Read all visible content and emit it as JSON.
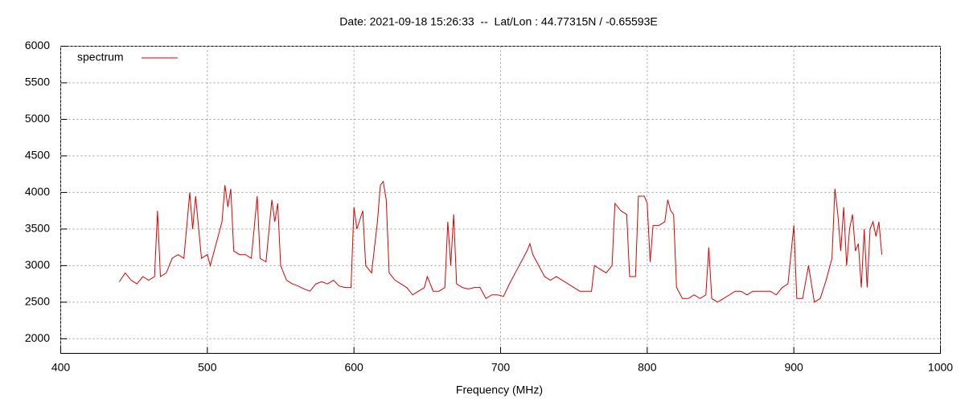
{
  "chart_data": {
    "type": "line",
    "title": "Date: 2021-09-18 15:26:33  --  Lat/Lon : 44.77315N / -0.65593E",
    "x_label": "Frequency (MHz)",
    "xlim": [
      400,
      1000
    ],
    "xticks": [
      400,
      500,
      600,
      700,
      800,
      900,
      1000
    ],
    "ylim": [
      1800,
      6000
    ],
    "yticks": [
      2000,
      2500,
      3000,
      3500,
      4000,
      4500,
      5000,
      5500,
      6000
    ],
    "grid": true,
    "legend": "top-left",
    "x": [
      440,
      444,
      448,
      452,
      456,
      460,
      464,
      466,
      468,
      472,
      476,
      480,
      484,
      488,
      490,
      492,
      496,
      500,
      502,
      506,
      510,
      512,
      514,
      516,
      518,
      522,
      526,
      530,
      534,
      536,
      540,
      544,
      546,
      548,
      550,
      554,
      558,
      562,
      566,
      570,
      574,
      578,
      582,
      586,
      590,
      594,
      598,
      600,
      602,
      606,
      608,
      612,
      616,
      618,
      620,
      622,
      624,
      628,
      632,
      636,
      640,
      644,
      648,
      650,
      654,
      658,
      662,
      664,
      666,
      668,
      670,
      674,
      678,
      682,
      686,
      690,
      694,
      698,
      702,
      706,
      710,
      714,
      718,
      720,
      722,
      726,
      730,
      734,
      738,
      742,
      746,
      750,
      754,
      758,
      762,
      764,
      768,
      772,
      776,
      778,
      782,
      786,
      788,
      792,
      794,
      798,
      800,
      802,
      804,
      808,
      812,
      814,
      816,
      818,
      820,
      824,
      828,
      832,
      836,
      840,
      842,
      844,
      848,
      852,
      856,
      860,
      864,
      868,
      872,
      876,
      880,
      884,
      888,
      892,
      896,
      900,
      902,
      906,
      910,
      914,
      918,
      922,
      926,
      928,
      930,
      932,
      934,
      936,
      938,
      940,
      942,
      944,
      946,
      948,
      950,
      952,
      954,
      956,
      958,
      960
    ],
    "series": [
      {
        "name": "spectrum",
        "color": "#e00000",
        "values": [
          2780,
          2900,
          2800,
          2750,
          2850,
          2800,
          2850,
          3750,
          2850,
          2900,
          3100,
          3150,
          3100,
          4000,
          3500,
          3950,
          3100,
          3150,
          3000,
          3300,
          3600,
          4100,
          3800,
          4050,
          3200,
          3150,
          3150,
          3100,
          3950,
          3100,
          3050,
          3900,
          3600,
          3850,
          3000,
          2800,
          2750,
          2720,
          2680,
          2650,
          2750,
          2780,
          2750,
          2800,
          2720,
          2700,
          2700,
          3800,
          3500,
          3750,
          3000,
          2900,
          3600,
          4100,
          4150,
          3900,
          2900,
          2800,
          2750,
          2700,
          2600,
          2650,
          2700,
          2850,
          2650,
          2650,
          2700,
          3600,
          3000,
          3700,
          2750,
          2700,
          2680,
          2700,
          2700,
          2550,
          2600,
          2600,
          2580,
          2750,
          2900,
          3050,
          3200,
          3300,
          3150,
          3000,
          2850,
          2800,
          2850,
          2800,
          2750,
          2700,
          2650,
          2650,
          2650,
          3000,
          2950,
          2900,
          3000,
          3850,
          3750,
          3700,
          2850,
          2850,
          3950,
          3950,
          3850,
          3050,
          3550,
          3550,
          3600,
          3900,
          3750,
          3700,
          2700,
          2550,
          2550,
          2600,
          2550,
          2600,
          3250,
          2550,
          2500,
          2550,
          2600,
          2650,
          2650,
          2600,
          2650,
          2650,
          2650,
          2650,
          2600,
          2700,
          2750,
          3550,
          2550,
          2550,
          3000,
          2500,
          2550,
          2800,
          3100,
          4050,
          3700,
          3200,
          3800,
          3000,
          3500,
          3700,
          3200,
          3300,
          2700,
          3500,
          2700,
          3500,
          3600,
          3400,
          3600,
          3150
        ]
      }
    ]
  }
}
